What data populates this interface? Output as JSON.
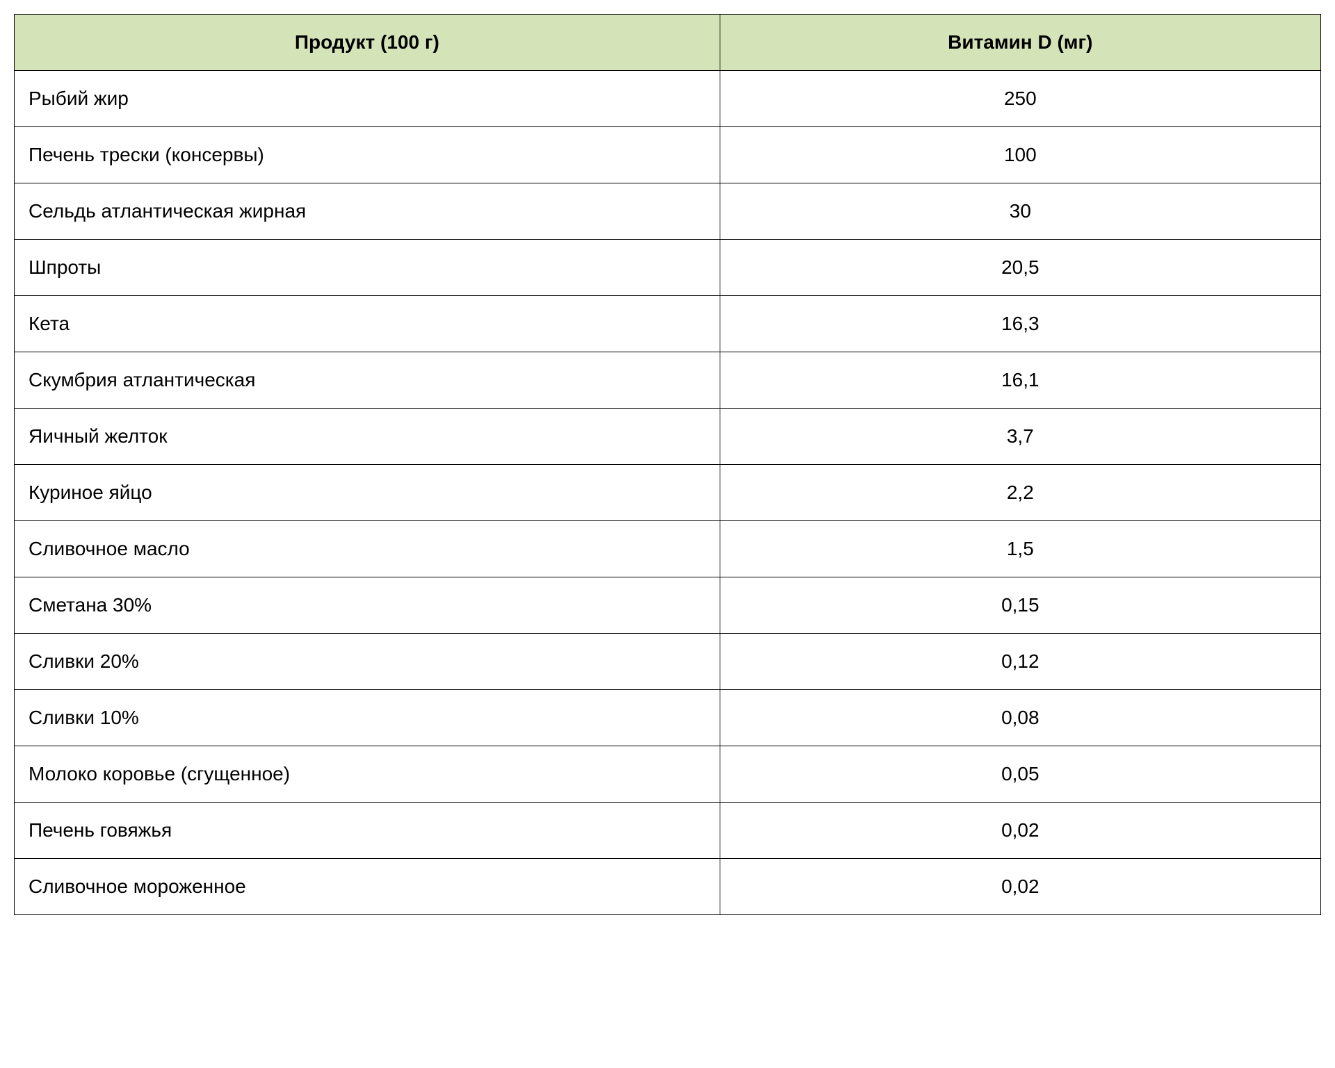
{
  "table": {
    "type": "table",
    "header_background_color": "#d5e3b9",
    "body_background_color": "#ffffff",
    "border_color": "#000000",
    "text_color": "#000000",
    "header_fontsize": 28,
    "body_fontsize": 28,
    "header_font_weight": "bold",
    "columns": [
      {
        "label": "Продукт (100 г)",
        "align": "left",
        "width_percent": 54
      },
      {
        "label": "Витамин D (мг)",
        "align": "center",
        "width_percent": 46
      }
    ],
    "rows": [
      {
        "product": "Рыбий жир",
        "value": "250"
      },
      {
        "product": "Печень трески (консервы)",
        "value": "100"
      },
      {
        "product": "Сельдь атлантическая жирная",
        "value": "30"
      },
      {
        "product": "Шпроты",
        "value": "20,5"
      },
      {
        "product": "Кета",
        "value": "16,3"
      },
      {
        "product": "Скумбрия атлантическая",
        "value": "16,1"
      },
      {
        "product": "Яичный желток",
        "value": "3,7"
      },
      {
        "product": "Куриное яйцо",
        "value": "2,2"
      },
      {
        "product": "Сливочное масло",
        "value": "1,5"
      },
      {
        "product": "Сметана 30%",
        "value": "0,15"
      },
      {
        "product": "Сливки 20%",
        "value": "0,12"
      },
      {
        "product": "Сливки 10%",
        "value": "0,08"
      },
      {
        "product": "Молоко коровье (сгущенное)",
        "value": "0,05"
      },
      {
        "product": "Печень говяжья",
        "value": "0,02"
      },
      {
        "product": "Сливочное мороженное",
        "value": "0,02"
      }
    ]
  }
}
